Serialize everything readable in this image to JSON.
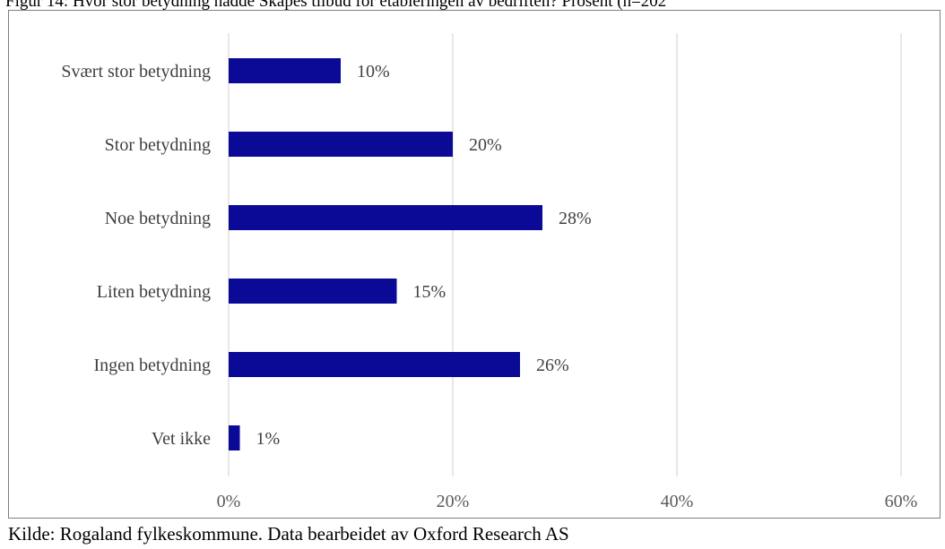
{
  "figure": {
    "title": "Figur 14: Hvor stor betydning hadde Skapes tilbud for etableringen av bedriften? Prosent (n=202",
    "source": "Kilde: Rogaland fylkeskommune. Data bearbeidet av Oxford Research AS"
  },
  "chart_data": {
    "type": "bar",
    "orientation": "horizontal",
    "categories": [
      "Svært stor betydning",
      "Stor betydning",
      "Noe betydning",
      "Liten betydning",
      "Ingen betydning",
      "Vet ikke"
    ],
    "values": [
      10,
      20,
      28,
      15,
      26,
      1
    ],
    "data_labels": [
      "10%",
      "20%",
      "28%",
      "15%",
      "26%",
      "1%"
    ],
    "x_ticks": [
      0,
      20,
      40,
      60
    ],
    "x_tick_labels": [
      "0%",
      "20%",
      "40%",
      "60%"
    ],
    "xlim": [
      0,
      60
    ],
    "bar_color": "#0a0a96",
    "grid": true,
    "legend": "none"
  }
}
